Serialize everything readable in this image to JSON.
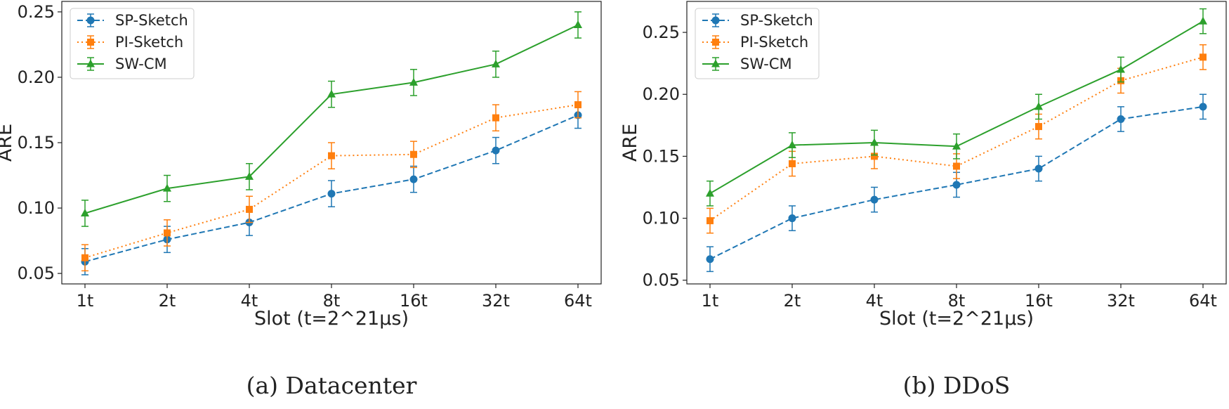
{
  "chart_data": [
    {
      "type": "line",
      "caption": "(a) Datacenter",
      "xlabel": "Slot (t=2^21μs)",
      "ylabel": "ARE",
      "categories": [
        "1t",
        "2t",
        "4t",
        "8t",
        "16t",
        "32t",
        "64t"
      ],
      "ylim": [
        0.042,
        0.258
      ],
      "yticks": [
        "0.05",
        "0.10",
        "0.15",
        "0.20",
        "0.25"
      ],
      "error_bar": 0.01,
      "legend": "top-left",
      "series": [
        {
          "name": "SP-Sketch",
          "color": "#1f77b4",
          "marker": "circle",
          "dash": "dashed",
          "values": [
            0.059,
            0.076,
            0.089,
            0.111,
            0.122,
            0.144,
            0.171
          ]
        },
        {
          "name": "PI-Sketch",
          "color": "#ff7f0e",
          "marker": "square",
          "dash": "dotted",
          "values": [
            0.062,
            0.081,
            0.099,
            0.14,
            0.141,
            0.169,
            0.179
          ]
        },
        {
          "name": "SW-CM",
          "color": "#2ca02c",
          "marker": "triangle",
          "dash": "solid",
          "values": [
            0.096,
            0.115,
            0.124,
            0.187,
            0.196,
            0.21,
            0.24
          ]
        }
      ]
    },
    {
      "type": "line",
      "caption": "(b) DDoS",
      "xlabel": "Slot (t=2^21μs)",
      "ylabel": "ARE",
      "categories": [
        "1t",
        "2t",
        "4t",
        "8t",
        "16t",
        "32t",
        "64t"
      ],
      "ylim": [
        0.047,
        0.275
      ],
      "yticks": [
        "0.05",
        "0.10",
        "0.15",
        "0.20",
        "0.25"
      ],
      "error_bar": 0.01,
      "legend": "top-left",
      "series": [
        {
          "name": "SP-Sketch",
          "color": "#1f77b4",
          "marker": "circle",
          "dash": "dashed",
          "values": [
            0.067,
            0.1,
            0.115,
            0.127,
            0.14,
            0.18,
            0.19
          ]
        },
        {
          "name": "PI-Sketch",
          "color": "#ff7f0e",
          "marker": "square",
          "dash": "dotted",
          "values": [
            0.098,
            0.144,
            0.15,
            0.142,
            0.174,
            0.211,
            0.23
          ]
        },
        {
          "name": "SW-CM",
          "color": "#2ca02c",
          "marker": "triangle",
          "dash": "solid",
          "values": [
            0.12,
            0.159,
            0.161,
            0.158,
            0.19,
            0.22,
            0.259
          ]
        }
      ]
    }
  ]
}
